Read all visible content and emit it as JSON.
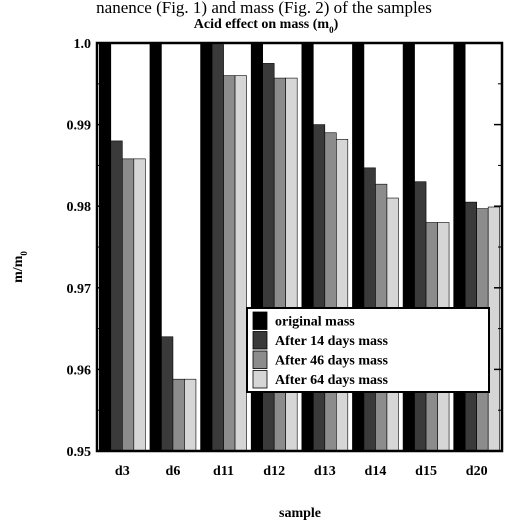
{
  "header_text": "nanence (Fig. 1) and mass (Fig. 2) of the samples",
  "chart_data": {
    "type": "bar",
    "title": "Acid effect on mass (m",
    "title_sub": "0",
    "title_tail": ")",
    "xlabel": "sample",
    "ylabel": "m/m",
    "ylabel_sub": "0",
    "ylim": [
      0.95,
      1.0
    ],
    "yticks": [
      {
        "value": 0.95,
        "label": "0.95"
      },
      {
        "value": 0.96,
        "label": "0.96"
      },
      {
        "value": 0.97,
        "label": "0.97"
      },
      {
        "value": 0.98,
        "label": "0.98"
      },
      {
        "value": 0.99,
        "label": "0.99"
      },
      {
        "value": 1.0,
        "label": "1.0"
      }
    ],
    "categories": [
      "d3",
      "d6",
      "d11",
      "d12",
      "d13",
      "d14",
      "d15",
      "d20"
    ],
    "series": [
      {
        "name": "original mass",
        "color": "#000000",
        "values": [
          1.0,
          1.0,
          1.0,
          1.0,
          1.0,
          1.0,
          1.0,
          1.0
        ]
      },
      {
        "name": "After 14 days mass",
        "color": "#3a3a3a",
        "values": [
          0.988,
          0.964,
          0.9998,
          0.9975,
          0.99,
          0.9847,
          0.983,
          0.9805
        ]
      },
      {
        "name": "After 46 days mass",
        "color": "#8c8c8c",
        "values": [
          0.9858,
          0.9588,
          0.996,
          0.9957,
          0.989,
          0.9827,
          0.978,
          0.9797
        ]
      },
      {
        "name": "After 64 days mass",
        "color": "#d6d6d6",
        "values": [
          0.9858,
          0.9588,
          0.996,
          0.9957,
          0.9882,
          0.981,
          0.978,
          0.9799
        ]
      }
    ],
    "grid": false,
    "legend_position": "lower-right"
  }
}
